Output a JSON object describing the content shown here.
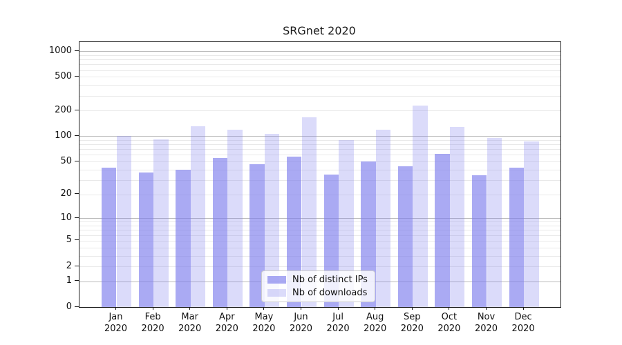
{
  "chart_data": {
    "type": "bar",
    "title": "SRGnet 2020",
    "categories": [
      "Jan",
      "Feb",
      "Mar",
      "Apr",
      "May",
      "Jun",
      "Jul",
      "Aug",
      "Sep",
      "Oct",
      "Nov",
      "Dec"
    ],
    "category_year": "2020",
    "series": [
      {
        "name": "Nb of distinct IPs",
        "color": "rgba(125,125,236,0.65)",
        "values": [
          42,
          37,
          40,
          55,
          46,
          57,
          35,
          50,
          44,
          62,
          34,
          42
        ]
      },
      {
        "name": "Nb of downloads",
        "color": "rgba(125,125,236,0.28)",
        "values": [
          100,
          92,
          130,
          120,
          107,
          167,
          90,
          119,
          232,
          128,
          95,
          86
        ]
      }
    ],
    "xlabel": "",
    "ylabel": "",
    "yscale": "symlog",
    "y_max": 1281,
    "y_ticks": [
      1000,
      500,
      200,
      100,
      50,
      20,
      10,
      5,
      2,
      1,
      0
    ],
    "y_major_gridlines": [
      1,
      10,
      100,
      1000
    ],
    "y_minor_gridlines": [
      2,
      3,
      4,
      5,
      6,
      7,
      8,
      9,
      20,
      30,
      40,
      50,
      60,
      70,
      80,
      90,
      200,
      300,
      400,
      500,
      600,
      700,
      800,
      900
    ],
    "legend_position": "lower center",
    "grid": true,
    "colors": {
      "major_grid": "#bababa",
      "minor_grid": "#e9e9e9",
      "spine": "#1a1a1a",
      "text": "#111111",
      "background": "#ffffff"
    }
  }
}
